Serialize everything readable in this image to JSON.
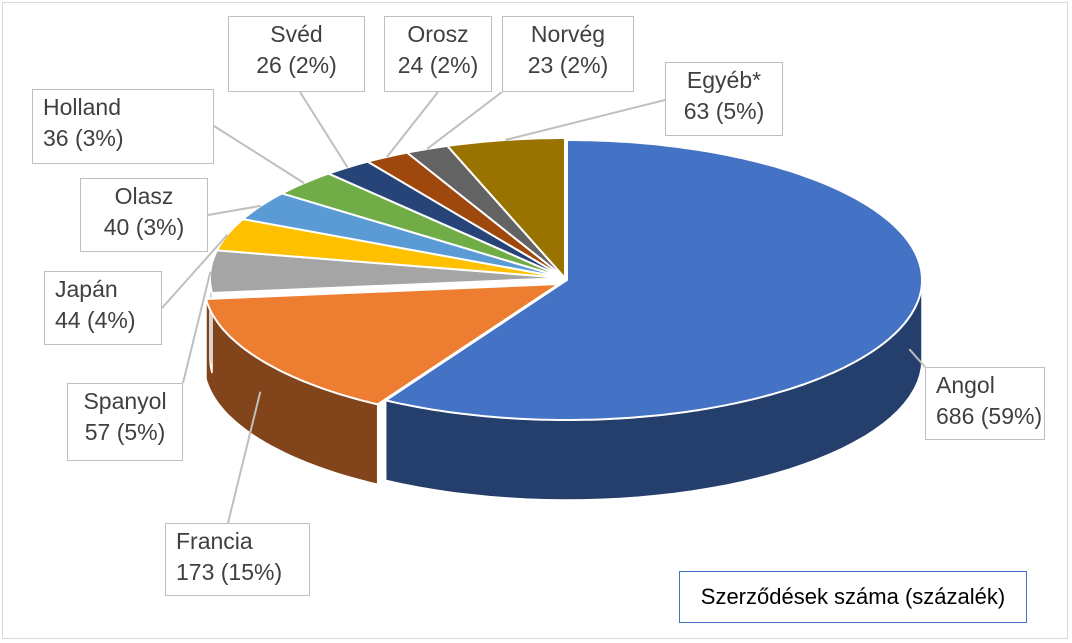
{
  "chart_data": {
    "type": "pie",
    "style": "3d-exploded-slices",
    "title": "",
    "legend_text": "Szerződések száma (százalék)",
    "slices": [
      {
        "label": "Angol",
        "value": 686,
        "percent_text": "686 (59%)",
        "color": "#4472c4"
      },
      {
        "label": "Francia",
        "value": 173,
        "percent_text": "173 (15%)",
        "color": "#ed7d31"
      },
      {
        "label": "Spanyol",
        "value": 57,
        "percent_text": "57 (5%)",
        "color": "#a5a5a5"
      },
      {
        "label": "Japán",
        "value": 44,
        "percent_text": "44 (4%)",
        "color": "#ffc000"
      },
      {
        "label": "Olasz",
        "value": 40,
        "percent_text": "40 (3%)",
        "color": "#5b9bd5"
      },
      {
        "label": "Holland",
        "value": 36,
        "percent_text": "36 (3%)",
        "color": "#70ad47"
      },
      {
        "label": "Svéd",
        "value": 26,
        "percent_text": "26 (2%)",
        "color": "#264478"
      },
      {
        "label": "Orosz",
        "value": 24,
        "percent_text": "24 (2%)",
        "color": "#9e480e"
      },
      {
        "label": "Norvég",
        "value": 23,
        "percent_text": "23 (2%)",
        "color": "#636363"
      },
      {
        "label": "Egyéb*",
        "value": 63,
        "percent_text": "63 (5%)",
        "color": "#997300"
      }
    ]
  }
}
